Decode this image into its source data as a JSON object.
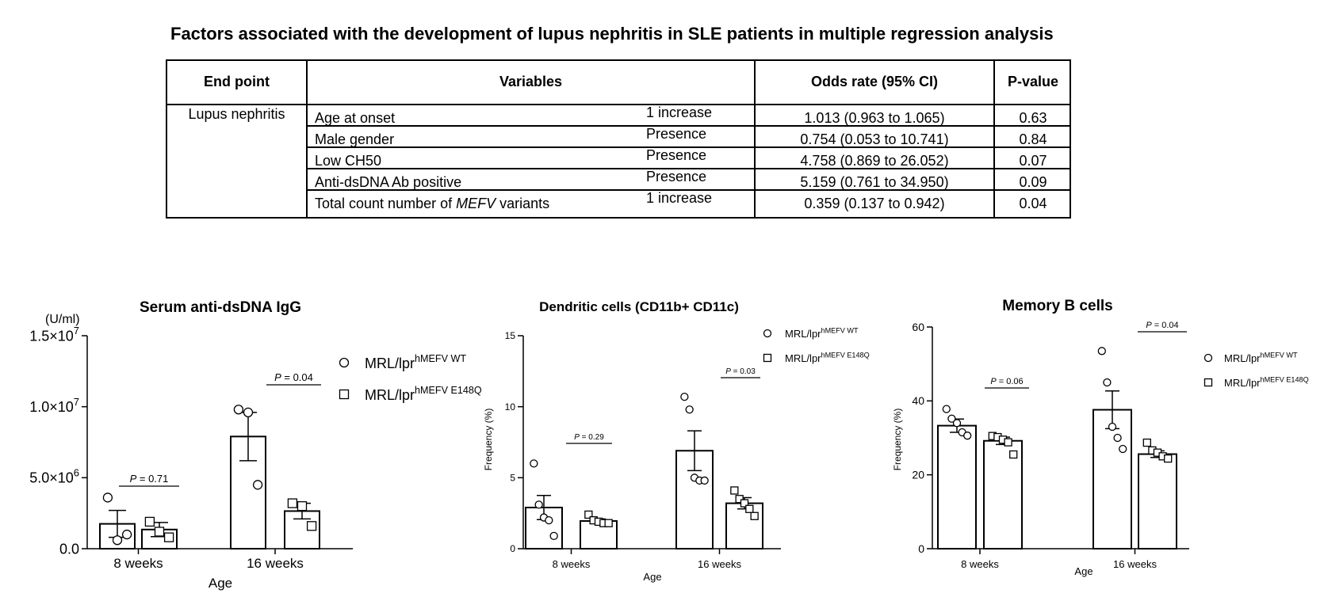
{
  "table": {
    "title": "Factors associated with the development of lupus nephritis in SLE patients in multiple regression analysis",
    "headers": [
      "End point",
      "Variables",
      "Odds rate (95% CI)",
      "P-value"
    ],
    "end_point": "Lupus nephritis",
    "rows": [
      {
        "variable": "Age at onset",
        "unit": "1 increase",
        "odds": "1.013 (0.963 to 1.065)",
        "p": "0.63"
      },
      {
        "variable": "Male gender",
        "unit": "Presence",
        "odds": "0.754 (0.053 to 10.741)",
        "p": "0.84"
      },
      {
        "variable": "Low CH50",
        "unit": "Presence",
        "odds": "4.758 (0.869 to 26.052)",
        "p": "0.07"
      },
      {
        "variable": "Anti-dsDNA Ab positive",
        "unit": "Presence",
        "odds": "5.159 (0.761 to 34.950)",
        "p": "0.09"
      },
      {
        "variable_prefix": "Total count number of ",
        "variable_italic": "MEFV",
        "variable_suffix": " variants",
        "unit": "1 increase",
        "odds": "0.359 (0.137 to 0.942)",
        "p": "0.04"
      }
    ]
  },
  "chart_data": [
    {
      "type": "bar",
      "title": "Serum anti-dsDNA IgG",
      "unit_label": "(U/ml)",
      "ylabel": "",
      "xlabel": "Age",
      "categories": [
        "8 weeks",
        "16 weeks"
      ],
      "ylim": [
        0,
        15000000
      ],
      "yticks": [
        0,
        5000000,
        10000000,
        15000000
      ],
      "ytick_labels": [
        "0.0",
        "5.0×10^6",
        "1.0×10^7",
        "1.5×10^7"
      ],
      "legend_position": "top-right",
      "series": [
        {
          "name": "MRL/lpr",
          "name_sup": "hMEFV WT",
          "marker": "circle",
          "values": [
            1750000,
            7900000
          ],
          "sem": [
            950000,
            1700000
          ],
          "points": [
            [
              3600000,
              600000,
              1000000
            ],
            [
              9800000,
              9600000,
              4500000
            ]
          ]
        },
        {
          "name": "MRL/lpr",
          "name_sup": "hMEFV E148Q",
          "marker": "square",
          "values": [
            1350000,
            2650000
          ],
          "sem": [
            500000,
            550000
          ],
          "points": [
            [
              1900000,
              1200000,
              800000
            ],
            [
              3200000,
              3000000,
              1600000
            ]
          ]
        }
      ],
      "pvalues": [
        "P = 0.71",
        "P = 0.04"
      ]
    },
    {
      "type": "bar",
      "title": "Dendritic cells (CD11b+ CD11c)",
      "ylabel": "Frequency (%)",
      "xlabel": "Age",
      "categories": [
        "8 weeks",
        "16 weeks"
      ],
      "ylim": [
        0,
        15
      ],
      "yticks": [
        0,
        5,
        10,
        15
      ],
      "ytick_labels": [
        "0",
        "5",
        "10",
        "15"
      ],
      "legend_position": "top-right",
      "series": [
        {
          "name": "MRL/lpr",
          "name_sup": "hMEFV WT",
          "marker": "circle",
          "values": [
            2.9,
            6.9
          ],
          "sem": [
            0.85,
            1.4
          ],
          "points": [
            [
              6.0,
              3.1,
              2.2,
              2.0,
              0.9
            ],
            [
              10.7,
              9.8,
              5.0,
              4.8,
              4.8
            ]
          ]
        },
        {
          "name": "MRL/lpr",
          "name_sup": "hMEFV E148Q",
          "marker": "square",
          "values": [
            1.95,
            3.2
          ],
          "sem": [
            0.15,
            0.4
          ],
          "points": [
            [
              2.4,
              2.0,
              1.9,
              1.8,
              1.8
            ],
            [
              4.1,
              3.5,
              3.2,
              2.8,
              2.3
            ]
          ]
        }
      ],
      "pvalues": [
        "P = 0.29",
        "P = 0.03"
      ]
    },
    {
      "type": "bar",
      "title": "Memory B cells",
      "ylabel": "Frequency (%)",
      "xlabel": "Age",
      "categories": [
        "8 weeks",
        "16 weeks"
      ],
      "ylim": [
        0,
        60
      ],
      "yticks": [
        0,
        20,
        40,
        60
      ],
      "ytick_labels": [
        "0",
        "20",
        "40",
        "60"
      ],
      "legend_position": "top-right",
      "series": [
        {
          "name": "MRL/lpr",
          "name_sup": "hMEFV WT",
          "marker": "circle",
          "values": [
            33.3,
            37.6
          ],
          "sem": [
            1.8,
            5.1
          ],
          "points": [
            [
              37.8,
              35.2,
              34.0,
              31.5,
              30.6
            ],
            [
              53.5,
              45.0,
              33.0,
              30.0,
              27.0
            ]
          ]
        },
        {
          "name": "MRL/lpr",
          "name_sup": "hMEFV E148Q",
          "marker": "square",
          "values": [
            29.2,
            25.6
          ],
          "sem": [
            1.0,
            0.9
          ],
          "points": [
            [
              30.5,
              30.2,
              29.5,
              28.8,
              25.5
            ],
            [
              28.7,
              26.6,
              26.0,
              25.0,
              24.4
            ]
          ]
        }
      ],
      "pvalues": [
        "P = 0.06",
        "P = 0.04"
      ]
    }
  ]
}
